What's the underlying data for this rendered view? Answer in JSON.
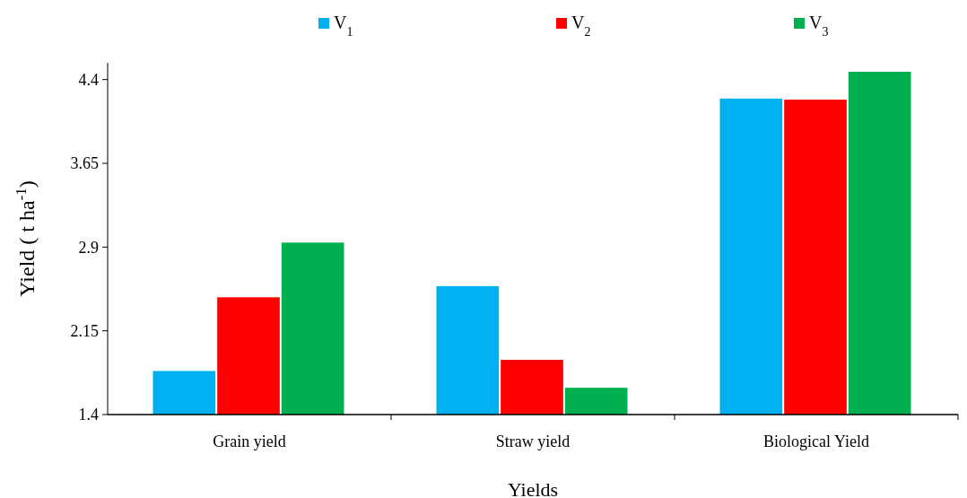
{
  "chart_data": {
    "type": "bar",
    "xlabel": "Yields",
    "ylabel": "Yield ( t ha$^{-1}$)",
    "categories": [
      "Grain yield",
      "Straw yield",
      "Biological Yield"
    ],
    "series": [
      {
        "name": "V$_{1}$",
        "color": "#00b0f0",
        "values": [
          1.79,
          2.55,
          4.23
        ]
      },
      {
        "name": "V$_{2}$",
        "color": "#ff0000",
        "values": [
          2.45,
          1.89,
          4.22
        ]
      },
      {
        "name": "V$_{3}$",
        "color": "#00b050",
        "values": [
          2.94,
          1.64,
          4.47
        ]
      }
    ],
    "ylim": [
      1.4,
      4.55
    ],
    "yticks": [
      1.4,
      2.15,
      2.9,
      3.65,
      4.4
    ],
    "grid": false,
    "legend": "top"
  }
}
